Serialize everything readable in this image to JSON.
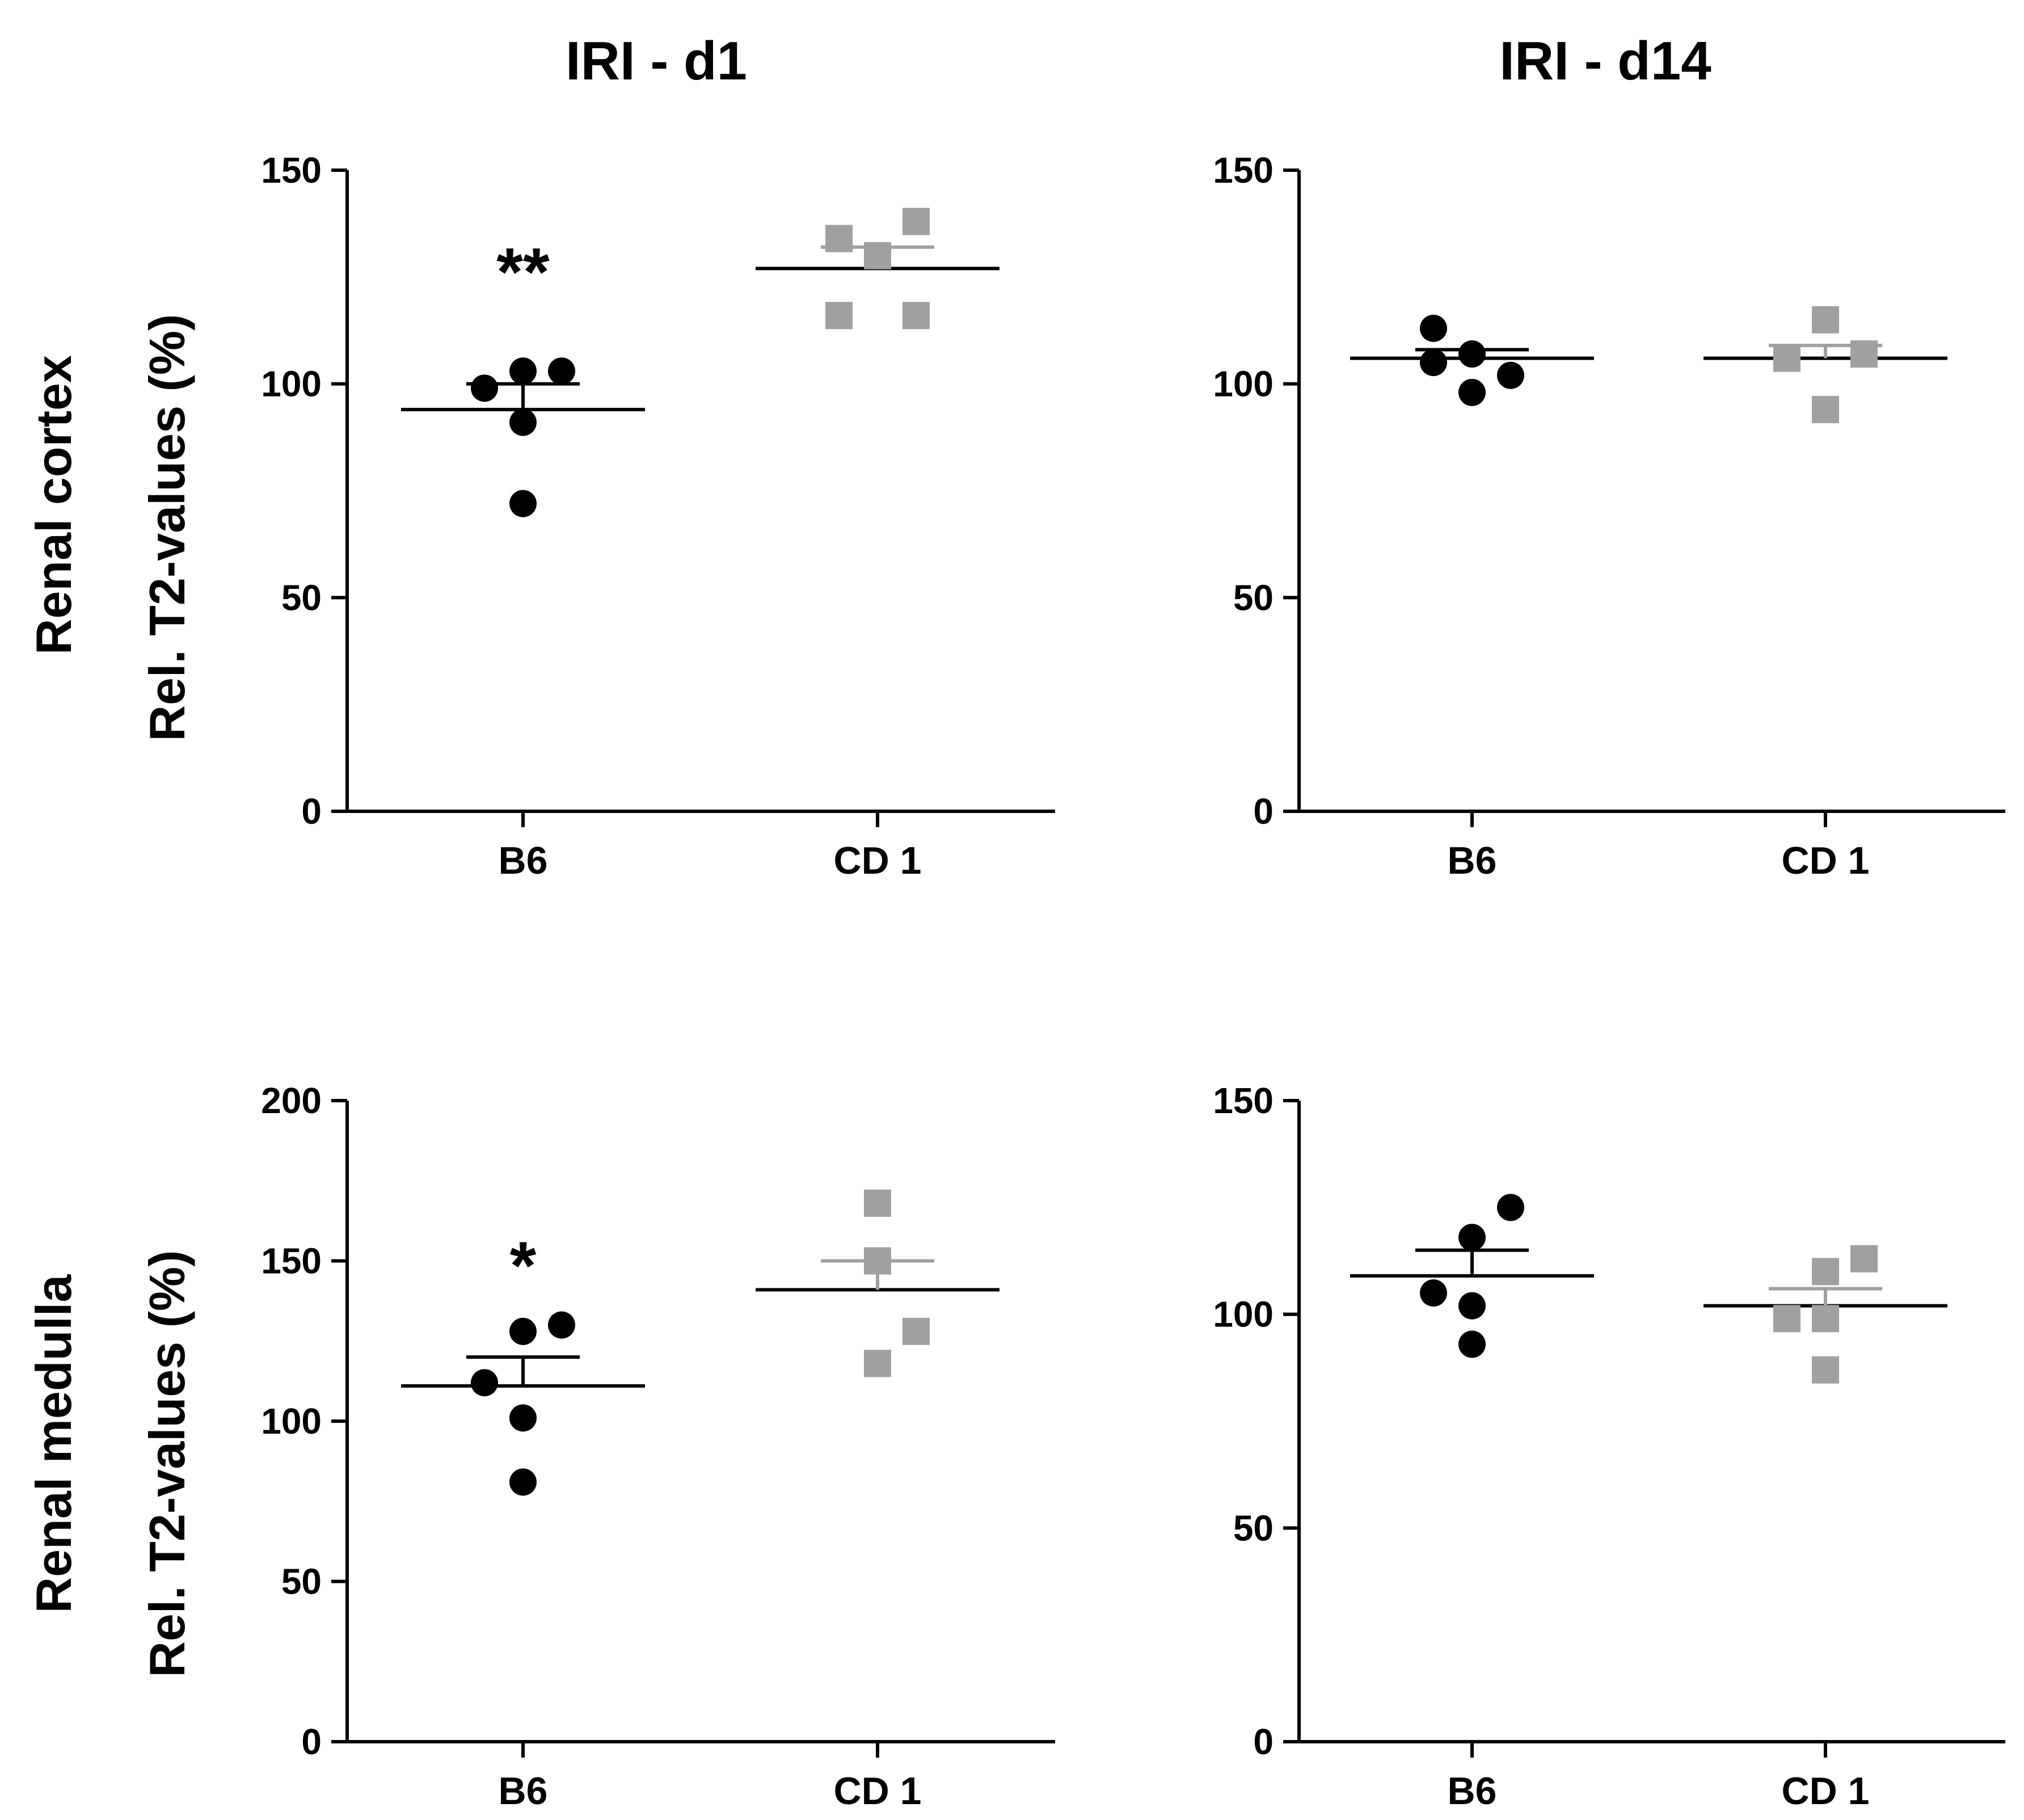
{
  "column_titles": [
    "IRI - d1",
    "IRI - d14"
  ],
  "row_labels": [
    "Renal cortex",
    "Renal medulla"
  ],
  "y_axis_label": "Rel. T2-values  (%)",
  "colors": {
    "B6": "#000000",
    "CD 1": "#a0a0a0",
    "axis": "#000000"
  },
  "markers": {
    "B6": "circle",
    "CD 1": "square"
  },
  "chart_data": [
    {
      "type": "scatter",
      "panel": "cortex-d1",
      "title": "IRI - d1",
      "ylabel": "Rel. T2-values  (%)",
      "ylim": [
        0,
        150
      ],
      "yticks": [
        0,
        50,
        100,
        150
      ],
      "yticklabels": [
        "0",
        "50",
        "100",
        "150"
      ],
      "categories": [
        "B6",
        "CD 1"
      ],
      "series": [
        {
          "name": "B6",
          "points": [
            [
              -0.1,
              99
            ],
            [
              0.0,
              103
            ],
            [
              0.1,
              103
            ],
            [
              0.0,
              91
            ],
            [
              0.0,
              72
            ]
          ],
          "mean": 94,
          "sem_upper": 100
        },
        {
          "name": "CD 1",
          "points": [
            [
              -0.1,
              134
            ],
            [
              0.1,
              138
            ],
            [
              0.0,
              130
            ],
            [
              -0.1,
              116
            ],
            [
              0.1,
              116
            ]
          ],
          "mean": 127,
          "sem_upper": 132
        }
      ],
      "annotations": [
        {
          "category": "B6",
          "text": "**",
          "y": 128
        }
      ]
    },
    {
      "type": "scatter",
      "panel": "cortex-d14",
      "title": "IRI - d14",
      "ylabel": "",
      "ylim": [
        0,
        150
      ],
      "yticks": [
        0,
        50,
        100,
        150
      ],
      "yticklabels": [
        "0",
        "50",
        "100",
        "150"
      ],
      "categories": [
        "B6",
        "CD 1"
      ],
      "series": [
        {
          "name": "B6",
          "points": [
            [
              -0.1,
              113
            ],
            [
              -0.1,
              105
            ],
            [
              0.0,
              107
            ],
            [
              0.1,
              102
            ],
            [
              0.0,
              98
            ]
          ],
          "mean": 106,
          "sem_upper": 108
        },
        {
          "name": "CD 1",
          "points": [
            [
              0.0,
              115
            ],
            [
              -0.1,
              106
            ],
            [
              0.1,
              107
            ],
            [
              0.0,
              94
            ]
          ],
          "mean": 106,
          "sem_upper": 109
        }
      ],
      "annotations": []
    },
    {
      "type": "scatter",
      "panel": "medulla-d1",
      "title": "",
      "ylabel": "Rel. T2-values  (%)",
      "ylim": [
        0,
        200
      ],
      "yticks": [
        0,
        50,
        100,
        150,
        200
      ],
      "yticklabels": [
        "0",
        "50",
        "100",
        "150",
        "200"
      ],
      "categories": [
        "B6",
        "CD 1"
      ],
      "series": [
        {
          "name": "B6",
          "points": [
            [
              0.0,
              128
            ],
            [
              0.1,
              130
            ],
            [
              -0.1,
              112
            ],
            [
              0.0,
              101
            ],
            [
              0.0,
              81
            ]
          ],
          "mean": 111,
          "sem_upper": 120
        },
        {
          "name": "CD 1",
          "points": [
            [
              0.0,
              168
            ],
            [
              0.0,
              150
            ],
            [
              0.1,
              128
            ],
            [
              0.0,
              118
            ]
          ],
          "mean": 141,
          "sem_upper": 150
        }
      ],
      "annotations": [
        {
          "category": "B6",
          "text": "*",
          "y": 151
        }
      ]
    },
    {
      "type": "scatter",
      "panel": "medulla-d14",
      "title": "",
      "ylabel": "",
      "ylim": [
        0,
        150
      ],
      "yticks": [
        0,
        50,
        100,
        150
      ],
      "yticklabels": [
        "0",
        "50",
        "100",
        "150"
      ],
      "categories": [
        "B6",
        "CD 1"
      ],
      "series": [
        {
          "name": "B6",
          "points": [
            [
              0.0,
              118
            ],
            [
              0.1,
              125
            ],
            [
              -0.1,
              105
            ],
            [
              0.0,
              102
            ],
            [
              0.0,
              93
            ]
          ],
          "mean": 109,
          "sem_upper": 115
        },
        {
          "name": "CD 1",
          "points": [
            [
              0.0,
              110
            ],
            [
              0.1,
              113
            ],
            [
              -0.1,
              99
            ],
            [
              0.0,
              99
            ],
            [
              0.0,
              87
            ]
          ],
          "mean": 102,
          "sem_upper": 106
        }
      ],
      "annotations": []
    }
  ]
}
